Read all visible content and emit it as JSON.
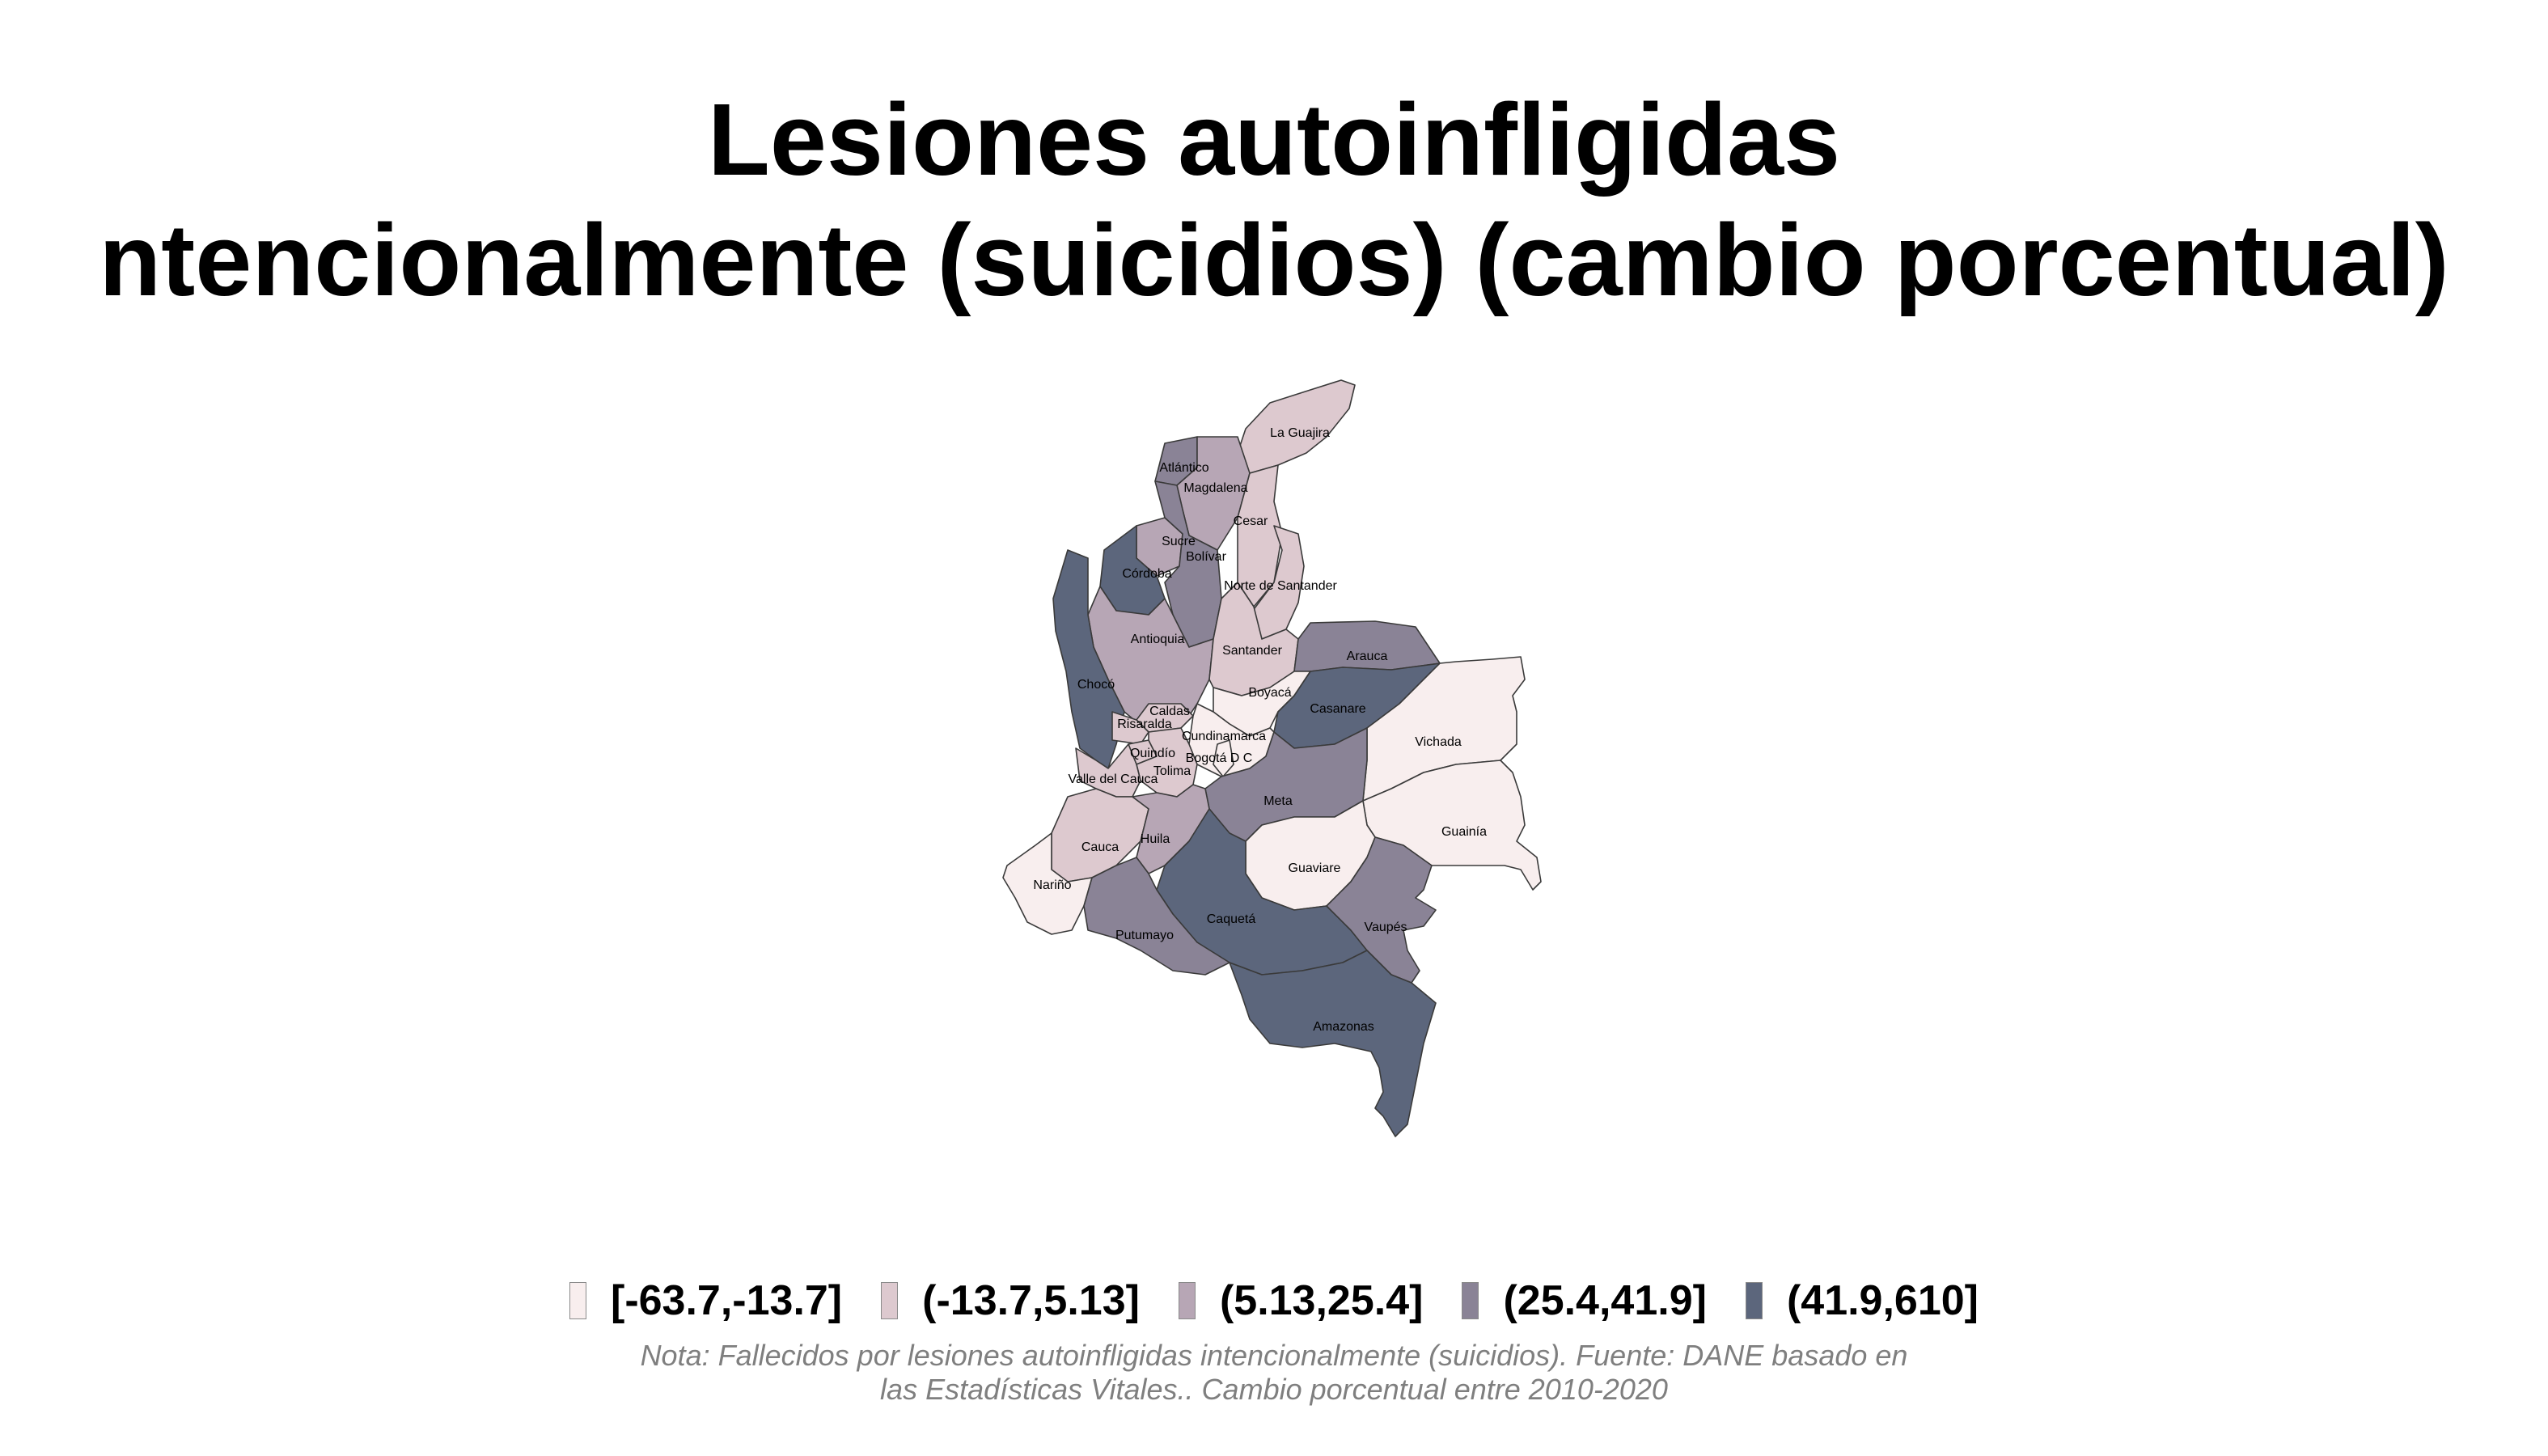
{
  "title": {
    "line1": "Lesiones autoinfligidas",
    "line2": "ntencionalmente (suicidios) (cambio porcentual)"
  },
  "legend": [
    {
      "label": "[-63.7,-13.7]",
      "color": "#f8eeee"
    },
    {
      "label": "(-13.7,5.13]",
      "color": "#ddc9cf"
    },
    {
      "label": "(5.13,25.4]",
      "color": "#b7a6b5"
    },
    {
      "label": "(25.4,41.9]",
      "color": "#8a8396"
    },
    {
      "label": "(41.9,610]",
      "color": "#5c667c"
    }
  ],
  "departments": [
    {
      "name": "La Guajira",
      "class": 1
    },
    {
      "name": "Atlántico",
      "class": 3
    },
    {
      "name": "Magdalena",
      "class": 2
    },
    {
      "name": "Cesar",
      "class": 1
    },
    {
      "name": "Sucre",
      "class": 2
    },
    {
      "name": "Bolívar",
      "class": 3
    },
    {
      "name": "Córdoba",
      "class": 4
    },
    {
      "name": "Norte de Santander",
      "class": 1
    },
    {
      "name": "Antioquia",
      "class": 2
    },
    {
      "name": "Santander",
      "class": 1
    },
    {
      "name": "Arauca",
      "class": 3
    },
    {
      "name": "Chocó",
      "class": 4
    },
    {
      "name": "Boyacá",
      "class": 0
    },
    {
      "name": "Casanare",
      "class": 4
    },
    {
      "name": "Caldas",
      "class": 1
    },
    {
      "name": "Risaralda",
      "class": 1
    },
    {
      "name": "Cundinamarca",
      "class": 0
    },
    {
      "name": "Vichada",
      "class": 0
    },
    {
      "name": "Quindío",
      "class": 1
    },
    {
      "name": "Bogotá D C",
      "class": 0
    },
    {
      "name": "Tolima",
      "class": 1
    },
    {
      "name": "Valle del Cauca",
      "class": 1
    },
    {
      "name": "Meta",
      "class": 3
    },
    {
      "name": "Guainía",
      "class": 0
    },
    {
      "name": "Cauca",
      "class": 1
    },
    {
      "name": "Huila",
      "class": 2
    },
    {
      "name": "Guaviare",
      "class": 0
    },
    {
      "name": "Nariño",
      "class": 0
    },
    {
      "name": "Caquetá",
      "class": 4
    },
    {
      "name": "Vaupés",
      "class": 3
    },
    {
      "name": "Putumayo",
      "class": 3
    },
    {
      "name": "Amazonas",
      "class": 4
    }
  ],
  "note": {
    "line1": "Nota: Fallecidos por lesiones autoinfligidas intencionalmente (suicidios). Fuente: DANE basado en",
    "line2": "las Estadísticas Vitales.. Cambio porcentual entre 2010-2020"
  }
}
